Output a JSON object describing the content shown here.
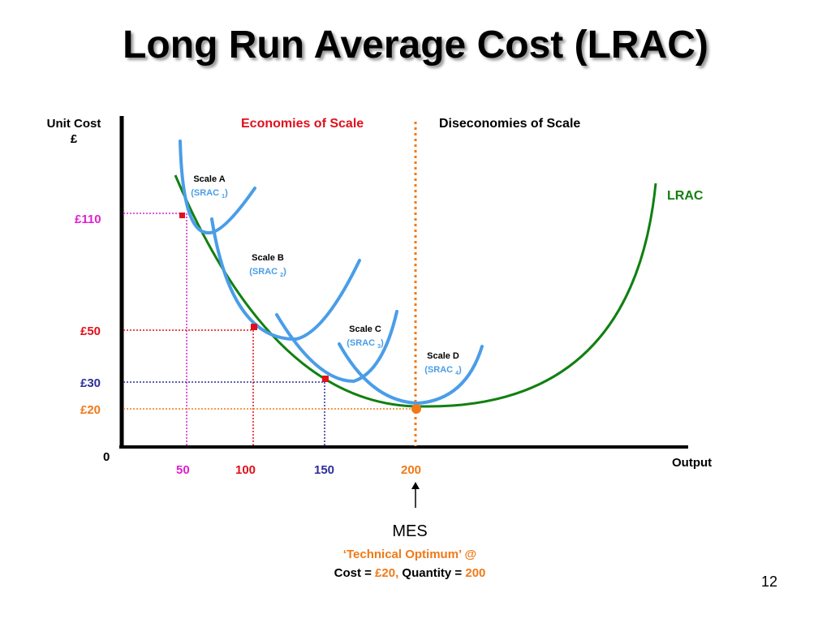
{
  "title": "Long Run Average Cost (LRAC)",
  "y_axis_label_line1": "Unit Cost",
  "y_axis_label_line2": "£",
  "x_axis_label": "Output",
  "origin_label": "0",
  "region_labels": {
    "economies": "Economies of Scale",
    "diseconomies": "Diseconomies of Scale"
  },
  "lrac_label": "LRAC",
  "srac_curves": [
    {
      "scale": "Scale A",
      "srac": "SRAC",
      "sub": "1"
    },
    {
      "scale": "Scale B",
      "srac": "SRAC",
      "sub": "2"
    },
    {
      "scale": "Scale C",
      "srac": "SRAC",
      "sub": "3"
    },
    {
      "scale": "Scale D",
      "srac": "SRAC",
      "sub": "4"
    }
  ],
  "y_ticks": [
    "£110",
    "£50",
    "£30",
    "£20"
  ],
  "x_ticks": [
    "50",
    "100",
    "150",
    "200"
  ],
  "mes": {
    "heading": "MES",
    "line2": "‘Technical Optimum’  @",
    "cost_prefix": "Cost = ",
    "cost_value": "£20,",
    "qty_prefix": " Quantity = ",
    "qty_value": "200"
  },
  "page_number": "12",
  "colors": {
    "lrac": "#118011",
    "srac": "#4a9de8",
    "economies": "#e0101c",
    "c110": "#e020d0",
    "c50": "#e0101c",
    "c30": "#2e2e9a",
    "c20": "#f07a18",
    "axis": "#000000"
  },
  "points": [
    {
      "output": 50,
      "cost": 110
    },
    {
      "output": 100,
      "cost": 50
    },
    {
      "output": 150,
      "cost": 30
    },
    {
      "output": 200,
      "cost": 20
    }
  ]
}
